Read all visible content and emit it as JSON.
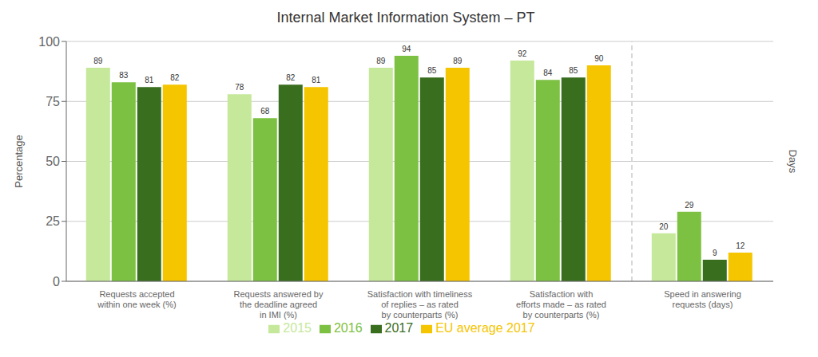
{
  "chart_data": {
    "type": "bar",
    "title": "Internal Market Information System – PT",
    "categories": [
      "Requests accepted\nwithin one week (%)",
      "Requests answered by\nthe deadline agreed\nin IMI (%)",
      "Satisfaction with timeliness\nof replies – as rated\nby counterparts (%)",
      "Satisfaction with\nefforts made – as rated\nby counterparts (%)",
      "Speed in answering\nrequests (days)"
    ],
    "series": [
      {
        "name": "2015",
        "color": "#c5e89a",
        "values": [
          89,
          78,
          89,
          92,
          20
        ]
      },
      {
        "name": "2016",
        "color": "#7dc142",
        "values": [
          83,
          68,
          94,
          84,
          29
        ]
      },
      {
        "name": "2017",
        "color": "#3a6e1f",
        "values": [
          81,
          82,
          85,
          85,
          9
        ]
      },
      {
        "name": "EU average 2017",
        "color": "#f5c500",
        "values": [
          82,
          81,
          89,
          90,
          12
        ]
      }
    ],
    "ylabel": "Percentage",
    "y2label": "Days",
    "ylim": [
      0,
      100
    ],
    "yticks": [
      0,
      25,
      50,
      75,
      100
    ],
    "grid": true,
    "legend": "bottom",
    "data_labels": true
  }
}
